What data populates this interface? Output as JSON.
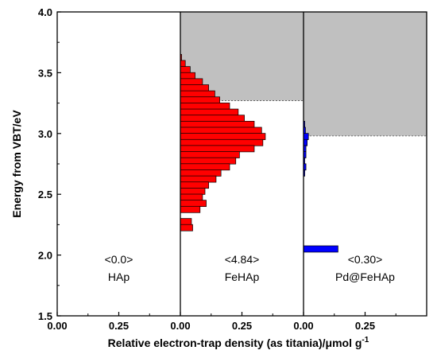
{
  "chart_data": {
    "type": "bar",
    "orientation": "horizontal",
    "xlabel": "Relative electron-trap density (as titania)/μmol g",
    "xlabel_superscript": "-1",
    "ylabel": "Energy from VBT/eV",
    "ylim": [
      1.5,
      4.0
    ],
    "yticks": [
      "1.5",
      "2.0",
      "2.5",
      "3.0",
      "3.5",
      "4.0"
    ],
    "panels": [
      {
        "name": "HAp",
        "value_label": "<0.0>",
        "xlim": [
          0,
          0.5
        ],
        "xticks": [
          "0.00",
          "0.25"
        ],
        "color": "#ff0000",
        "cb_energy": null,
        "bars": []
      },
      {
        "name": "FeHAp",
        "value_label": "<4.84>",
        "xlim": [
          0,
          0.5
        ],
        "xticks": [
          "0.00",
          "0.25"
        ],
        "color": "#ff0000",
        "cb_energy": 3.27,
        "bars": [
          {
            "energy": 3.625,
            "value": 0.005
          },
          {
            "energy": 3.575,
            "value": 0.02
          },
          {
            "energy": 3.525,
            "value": 0.04
          },
          {
            "energy": 3.475,
            "value": 0.06
          },
          {
            "energy": 3.425,
            "value": 0.09
          },
          {
            "energy": 3.375,
            "value": 0.115
          },
          {
            "energy": 3.325,
            "value": 0.14
          },
          {
            "energy": 3.275,
            "value": 0.16
          },
          {
            "energy": 3.225,
            "value": 0.2
          },
          {
            "energy": 3.175,
            "value": 0.235
          },
          {
            "energy": 3.125,
            "value": 0.26
          },
          {
            "energy": 3.075,
            "value": 0.3
          },
          {
            "energy": 3.025,
            "value": 0.33
          },
          {
            "energy": 2.975,
            "value": 0.345
          },
          {
            "energy": 2.925,
            "value": 0.335
          },
          {
            "energy": 2.875,
            "value": 0.3
          },
          {
            "energy": 2.825,
            "value": 0.24
          },
          {
            "energy": 2.775,
            "value": 0.225
          },
          {
            "energy": 2.725,
            "value": 0.2
          },
          {
            "energy": 2.675,
            "value": 0.165
          },
          {
            "energy": 2.625,
            "value": 0.145
          },
          {
            "energy": 2.575,
            "value": 0.115
          },
          {
            "energy": 2.525,
            "value": 0.1
          },
          {
            "energy": 2.475,
            "value": 0.09
          },
          {
            "energy": 2.425,
            "value": 0.105
          },
          {
            "energy": 2.375,
            "value": 0.08
          },
          {
            "energy": 2.275,
            "value": 0.045
          },
          {
            "energy": 2.225,
            "value": 0.05
          }
        ]
      },
      {
        "name": "Pd@FeHAp",
        "value_label": "<0.30>",
        "xlim": [
          0,
          0.5
        ],
        "xticks": [
          "0.00",
          "0.25"
        ],
        "color": "#0000ff",
        "cb_energy": 2.98,
        "bars": [
          {
            "energy": 3.075,
            "value": 0.005
          },
          {
            "energy": 3.025,
            "value": 0.008
          },
          {
            "energy": 2.975,
            "value": 0.02
          },
          {
            "energy": 2.925,
            "value": 0.015
          },
          {
            "energy": 2.875,
            "value": 0.01
          },
          {
            "energy": 2.825,
            "value": 0.01
          },
          {
            "energy": 2.775,
            "value": 0.005
          },
          {
            "energy": 2.725,
            "value": 0.01
          },
          {
            "energy": 2.675,
            "value": 0.005
          },
          {
            "energy": 2.05,
            "value": 0.14
          }
        ]
      }
    ],
    "grid": false,
    "legend": "none",
    "cb_fill_color": "#c0c0c0"
  }
}
